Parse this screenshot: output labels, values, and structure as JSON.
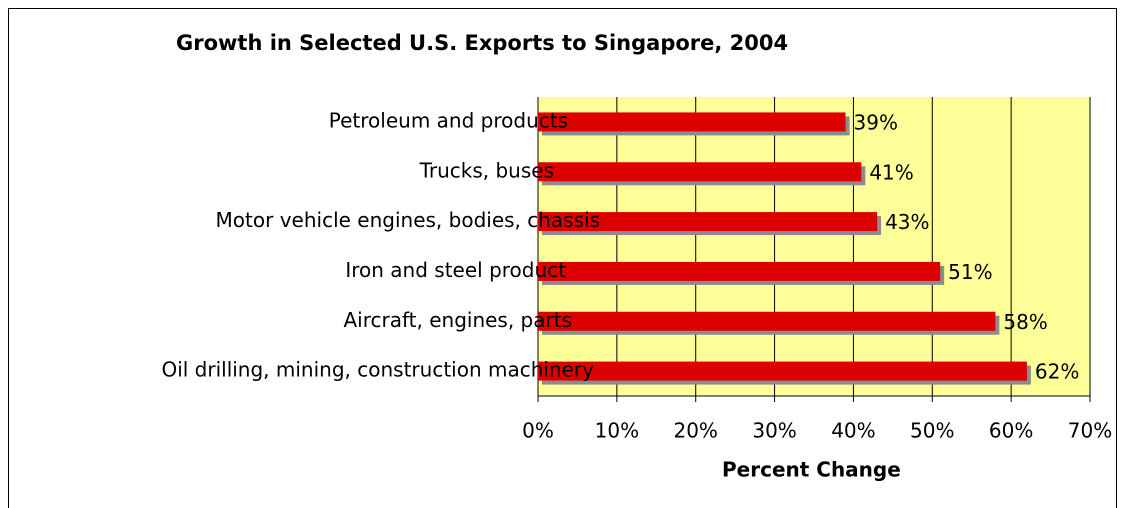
{
  "chart_data": {
    "type": "bar",
    "orientation": "horizontal",
    "title": "Growth in Selected U.S. Exports to Singapore, 2004",
    "x_label": "Percent Change",
    "categories": [
      "Petroleum and products",
      "Trucks, buses",
      "Motor vehicle engines, bodies, chassis",
      "Iron and steel product",
      "Aircraft, engines, parts",
      "Oil drilling, mining, construction machinery"
    ],
    "values": [
      39,
      41,
      43,
      51,
      58,
      62
    ],
    "value_labels": [
      "39%",
      "41%",
      "43%",
      "51%",
      "58%",
      "62%"
    ],
    "color": "#dd0000",
    "xlim": [
      0,
      70
    ],
    "xticks": [
      {
        "value": 0,
        "label": "0%"
      },
      {
        "value": 10,
        "label": "10%"
      },
      {
        "value": 20,
        "label": "20%"
      },
      {
        "value": 30,
        "label": "30%"
      },
      {
        "value": 40,
        "label": "40%"
      },
      {
        "value": 50,
        "label": "50%"
      },
      {
        "value": 60,
        "label": "60%"
      },
      {
        "value": 70,
        "label": "70%"
      }
    ],
    "grid": true
  }
}
